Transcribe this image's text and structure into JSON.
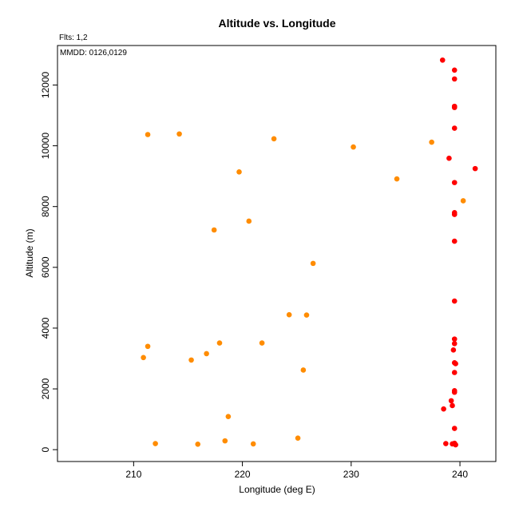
{
  "chart_data": {
    "type": "scatter",
    "title": "Altitude vs. Longitude",
    "xlabel": "Longitude (deg E)",
    "ylabel": "Altitude (m)",
    "annotations": [
      "Flts: 1,2",
      "MMDD: 0126,0129"
    ],
    "xlim": [
      203.0,
      243.3
    ],
    "ylim": [
      -390,
      13300
    ],
    "x_ticks": [
      210,
      220,
      230,
      240
    ],
    "y_ticks": [
      0,
      2000,
      4000,
      6000,
      8000,
      10000,
      12000
    ],
    "grid": false,
    "series": [
      {
        "color": "#FF8C00",
        "points": [
          [
            211.3,
            10370
          ],
          [
            214.2,
            10390
          ],
          [
            222.9,
            10230
          ],
          [
            230.2,
            9960
          ],
          [
            237.4,
            10120
          ],
          [
            219.7,
            9140
          ],
          [
            234.2,
            8910
          ],
          [
            240.3,
            8190
          ],
          [
            220.6,
            7520
          ],
          [
            217.4,
            7230
          ],
          [
            226.5,
            6130
          ],
          [
            224.3,
            4440
          ],
          [
            225.9,
            4430
          ],
          [
            211.3,
            3400
          ],
          [
            217.9,
            3510
          ],
          [
            221.8,
            3510
          ],
          [
            216.7,
            3160
          ],
          [
            210.9,
            3030
          ],
          [
            215.3,
            2950
          ],
          [
            225.6,
            2620
          ],
          [
            218.7,
            1090
          ],
          [
            225.1,
            380
          ],
          [
            218.4,
            290
          ],
          [
            212.0,
            200
          ],
          [
            215.9,
            180
          ],
          [
            221.0,
            190
          ]
        ]
      },
      {
        "color": "#FF0000",
        "points": [
          [
            238.4,
            12820
          ],
          [
            239.5,
            12490
          ],
          [
            239.5,
            12200
          ],
          [
            239.5,
            11300
          ],
          [
            239.5,
            11260
          ],
          [
            239.5,
            10580
          ],
          [
            239.0,
            9590
          ],
          [
            241.4,
            9250
          ],
          [
            239.5,
            8790
          ],
          [
            239.5,
            7800
          ],
          [
            239.5,
            7740
          ],
          [
            239.5,
            6860
          ],
          [
            239.5,
            4890
          ],
          [
            239.5,
            3640
          ],
          [
            239.5,
            3490
          ],
          [
            239.4,
            3280
          ],
          [
            239.5,
            2860
          ],
          [
            239.6,
            2830
          ],
          [
            239.5,
            2540
          ],
          [
            239.5,
            1940
          ],
          [
            239.5,
            1890
          ],
          [
            239.2,
            1610
          ],
          [
            239.3,
            1450
          ],
          [
            238.5,
            1340
          ],
          [
            239.5,
            700
          ],
          [
            238.7,
            200
          ],
          [
            239.3,
            190
          ],
          [
            239.5,
            210
          ],
          [
            239.6,
            160
          ]
        ]
      }
    ]
  }
}
